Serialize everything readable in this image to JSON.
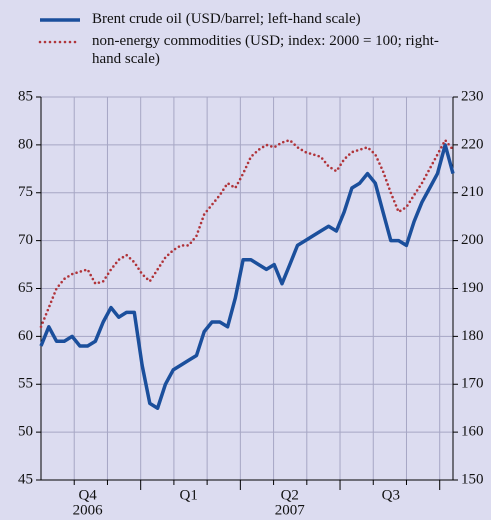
{
  "chart_data": {
    "type": "line",
    "categories": [
      null,
      null,
      null,
      null,
      null,
      null,
      "Q4",
      null,
      null,
      null,
      null,
      null,
      null,
      null,
      null,
      null,
      null,
      null,
      null,
      "Q1",
      null,
      null,
      null,
      null,
      null,
      null,
      null,
      null,
      null,
      null,
      null,
      null,
      "Q2",
      null,
      null,
      null,
      null,
      null,
      null,
      null,
      null,
      null,
      null,
      null,
      null,
      "Q3",
      null,
      null,
      null,
      null,
      null,
      null,
      null,
      null
    ],
    "years": [
      null,
      null,
      null,
      null,
      null,
      null,
      "2006",
      null,
      null,
      null,
      null,
      null,
      null,
      null,
      null,
      null,
      null,
      null,
      null,
      null,
      null,
      null,
      null,
      null,
      null,
      null,
      null,
      null,
      null,
      null,
      null,
      null,
      "2007",
      null,
      null,
      null,
      null,
      null,
      null,
      null,
      null,
      null,
      null,
      null,
      null,
      null,
      null,
      null,
      null,
      null,
      null,
      null,
      null,
      null
    ],
    "series": [
      {
        "name": "Brent crude oil (USD/barrel; left-hand scale)",
        "color": "#1b4f9c",
        "axis": "y",
        "values": [
          59,
          61,
          59.5,
          59.5,
          60,
          59,
          59,
          59.5,
          61.5,
          63,
          62,
          62.5,
          62.5,
          57,
          53,
          52.5,
          55,
          56.5,
          57,
          57.5,
          58,
          60.5,
          61.5,
          61.5,
          61,
          64,
          68,
          68,
          67.5,
          67,
          67.5,
          65.5,
          67.5,
          69.5,
          70,
          70.5,
          71,
          71.5,
          71,
          73,
          75.5,
          76,
          77,
          76,
          73,
          70,
          70,
          69.5,
          72,
          74,
          75.5,
          77,
          80,
          77
        ]
      },
      {
        "name": "non-energy commodities (USD; index: 2000 = 100; right-hand scale)",
        "color": "#b0343a",
        "axis": "y2",
        "values": [
          182,
          186,
          190,
          192,
          193,
          193.5,
          194,
          191,
          191.5,
          194,
          196,
          197,
          195.5,
          193,
          191.5,
          194,
          196.5,
          198,
          199,
          199,
          201,
          205.5,
          207.5,
          209.5,
          212,
          211,
          214,
          217.5,
          219,
          220,
          219.5,
          220.5,
          221,
          219.5,
          218.5,
          218,
          217.5,
          215.5,
          214.5,
          217,
          218.5,
          219,
          219.5,
          218,
          214.5,
          210,
          206,
          207,
          209.5,
          212,
          215,
          218,
          221,
          219
        ]
      }
    ],
    "ylim": [
      45,
      85
    ],
    "yticks": [
      45,
      50,
      55,
      60,
      65,
      70,
      75,
      80,
      85
    ],
    "y2lim": [
      150,
      230
    ],
    "y2ticks": [
      150,
      160,
      170,
      180,
      190,
      200,
      210,
      220,
      230
    ],
    "grid": true
  }
}
